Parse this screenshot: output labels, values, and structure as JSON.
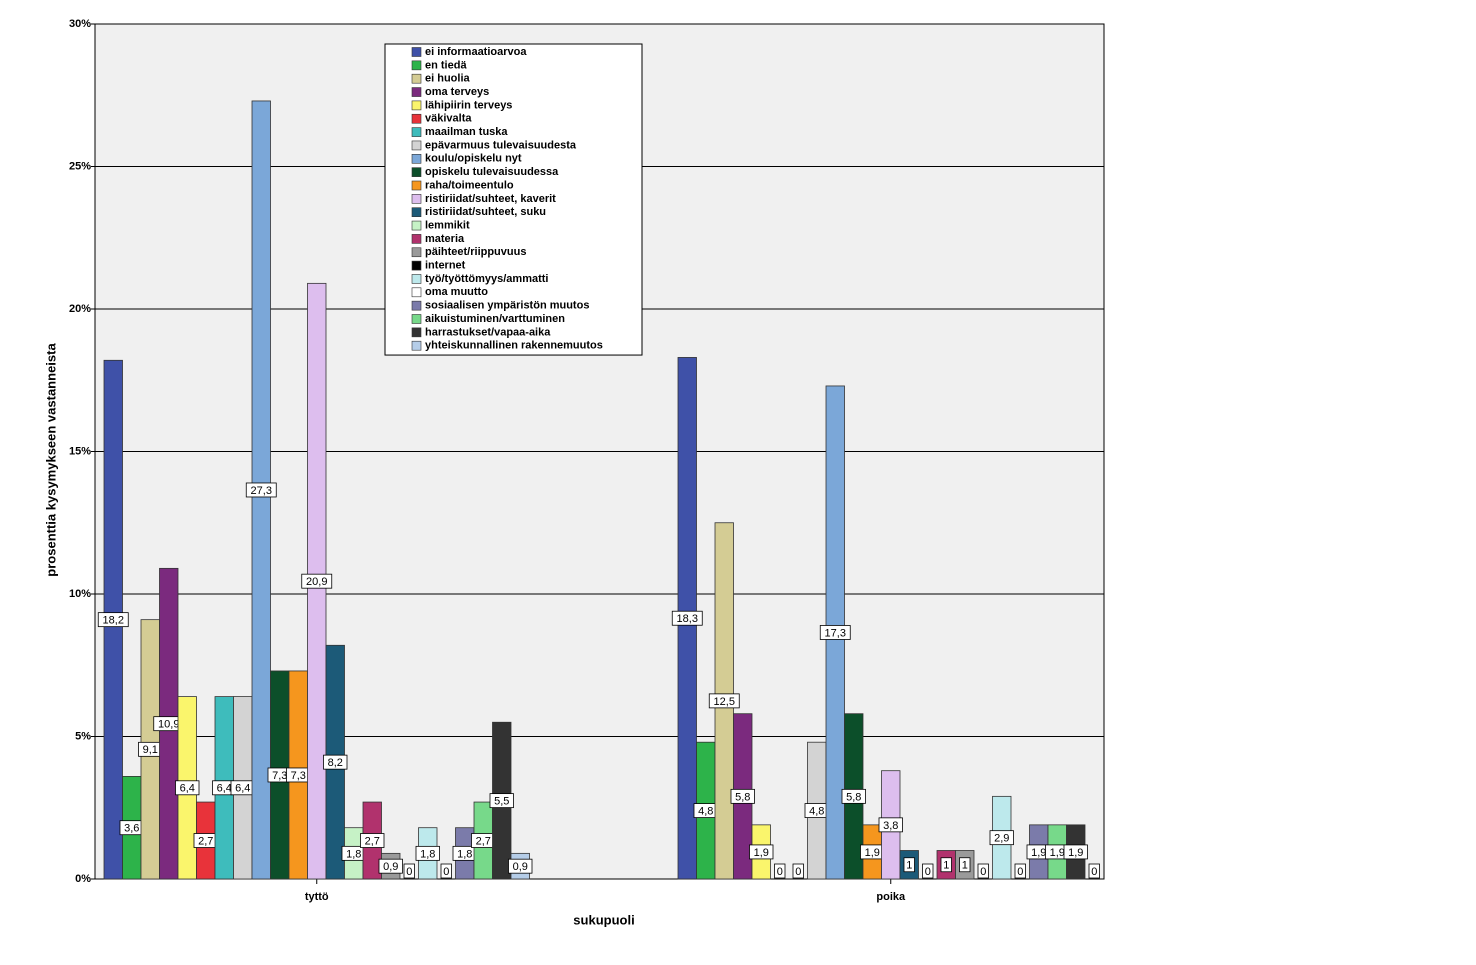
{
  "chart_data": {
    "type": "bar",
    "x_label": "sukupuoli",
    "y_label": "prosenttia kysymykseen vastanneista",
    "categories": [
      "tyttö",
      "poika"
    ],
    "ylim": [
      0,
      30
    ],
    "yticks": [
      {
        "value": 0,
        "label": "0%"
      },
      {
        "value": 5,
        "label": "5%"
      },
      {
        "value": 10,
        "label": "10%"
      },
      {
        "value": 15,
        "label": "15%"
      },
      {
        "value": 20,
        "label": "20%"
      },
      {
        "value": 25,
        "label": "25%"
      },
      {
        "value": 30,
        "label": "30%"
      }
    ],
    "grid": true,
    "legend_position": "top",
    "series": [
      {
        "name": "ei informaatioarvoa",
        "color": "#3f51a8",
        "values": [
          18.2,
          18.3
        ],
        "value_labels": [
          "18,2",
          "18,3"
        ]
      },
      {
        "name": "en tiedä",
        "color": "#2db34a",
        "values": [
          3.6,
          4.8
        ],
        "value_labels": [
          "3,6",
          "4,8"
        ]
      },
      {
        "name": "ei huolia",
        "color": "#d4cc94",
        "values": [
          9.1,
          12.5
        ],
        "value_labels": [
          "9,1",
          "12,5"
        ]
      },
      {
        "name": "oma terveys",
        "color": "#7b2a7e",
        "values": [
          10.9,
          5.8
        ],
        "value_labels": [
          "10,9",
          "5,8"
        ]
      },
      {
        "name": "lähipiirin terveys",
        "color": "#faf56c",
        "values": [
          6.4,
          1.9
        ],
        "value_labels": [
          "6,4",
          "1,9"
        ]
      },
      {
        "name": "väkivalta",
        "color": "#e8333a",
        "values": [
          2.7,
          0
        ],
        "value_labels": [
          "2,7",
          "0"
        ]
      },
      {
        "name": "maailman tuska",
        "color": "#3ebcbc",
        "values": [
          6.4,
          0
        ],
        "value_labels": [
          "6,4",
          "0"
        ]
      },
      {
        "name": "epävarmuus tulevaisuudesta",
        "color": "#d3d3d3",
        "values": [
          6.4,
          4.8
        ],
        "value_labels": [
          "6,4",
          "4,8"
        ]
      },
      {
        "name": "koulu/opiskelu nyt",
        "color": "#7ba7d8",
        "values": [
          27.3,
          17.3
        ],
        "value_labels": [
          "27,3",
          "17,3"
        ]
      },
      {
        "name": "opiskelu tulevaisuudessa",
        "color": "#0c4f2a",
        "values": [
          7.3,
          5.8
        ],
        "value_labels": [
          "7,3",
          "5,8"
        ]
      },
      {
        "name": "raha/toimeentulo",
        "color": "#f5961e",
        "values": [
          7.3,
          1.9
        ],
        "value_labels": [
          "7,3",
          "1,9"
        ]
      },
      {
        "name": "ristiriidat/suhteet, kaverit",
        "color": "#ddbeee",
        "values": [
          20.9,
          3.8
        ],
        "value_labels": [
          "20,9",
          "3,8"
        ]
      },
      {
        "name": "ristiriidat/suhteet, suku",
        "color": "#1c5a78",
        "values": [
          8.2,
          1
        ],
        "value_labels": [
          "8,2",
          "1"
        ]
      },
      {
        "name": "lemmikit",
        "color": "#c6f2c6",
        "values": [
          1.8,
          0
        ],
        "value_labels": [
          "1,8",
          "0"
        ]
      },
      {
        "name": "materia",
        "color": "#b1326d",
        "values": [
          2.7,
          1
        ],
        "value_labels": [
          "2,7",
          "1"
        ]
      },
      {
        "name": "päihteet/riippuvuus",
        "color": "#9a9a9a",
        "values": [
          0.9,
          1
        ],
        "value_labels": [
          "0,9",
          "1"
        ]
      },
      {
        "name": "internet",
        "color": "#000000",
        "values": [
          0,
          0
        ],
        "value_labels": [
          "0",
          "0"
        ]
      },
      {
        "name": "työ/työttömyys/ammatti",
        "color": "#bde9ec",
        "values": [
          1.8,
          2.9
        ],
        "value_labels": [
          "1,8",
          "2,9"
        ]
      },
      {
        "name": "oma muutto",
        "color": "#ffffff",
        "values": [
          0,
          0
        ],
        "value_labels": [
          "0",
          "0"
        ]
      },
      {
        "name": "sosiaalisen ympäristön muutos",
        "color": "#7b7baa",
        "values": [
          1.8,
          1.9
        ],
        "value_labels": [
          "1,8",
          "1,9"
        ]
      },
      {
        "name": "aikuistuminen/varttuminen",
        "color": "#77d98a",
        "values": [
          2.7,
          1.9
        ],
        "value_labels": [
          "2,7",
          "1,9"
        ]
      },
      {
        "name": "harrastukset/vapaa-aika",
        "color": "#333333",
        "values": [
          5.5,
          1.9
        ],
        "value_labels": [
          "5,5",
          "1,9"
        ]
      },
      {
        "name": "yhteiskunnallinen rakennemuutos",
        "color": "#b5cde8",
        "values": [
          0.9,
          0
        ],
        "value_labels": [
          "0,9",
          "0"
        ]
      }
    ]
  }
}
